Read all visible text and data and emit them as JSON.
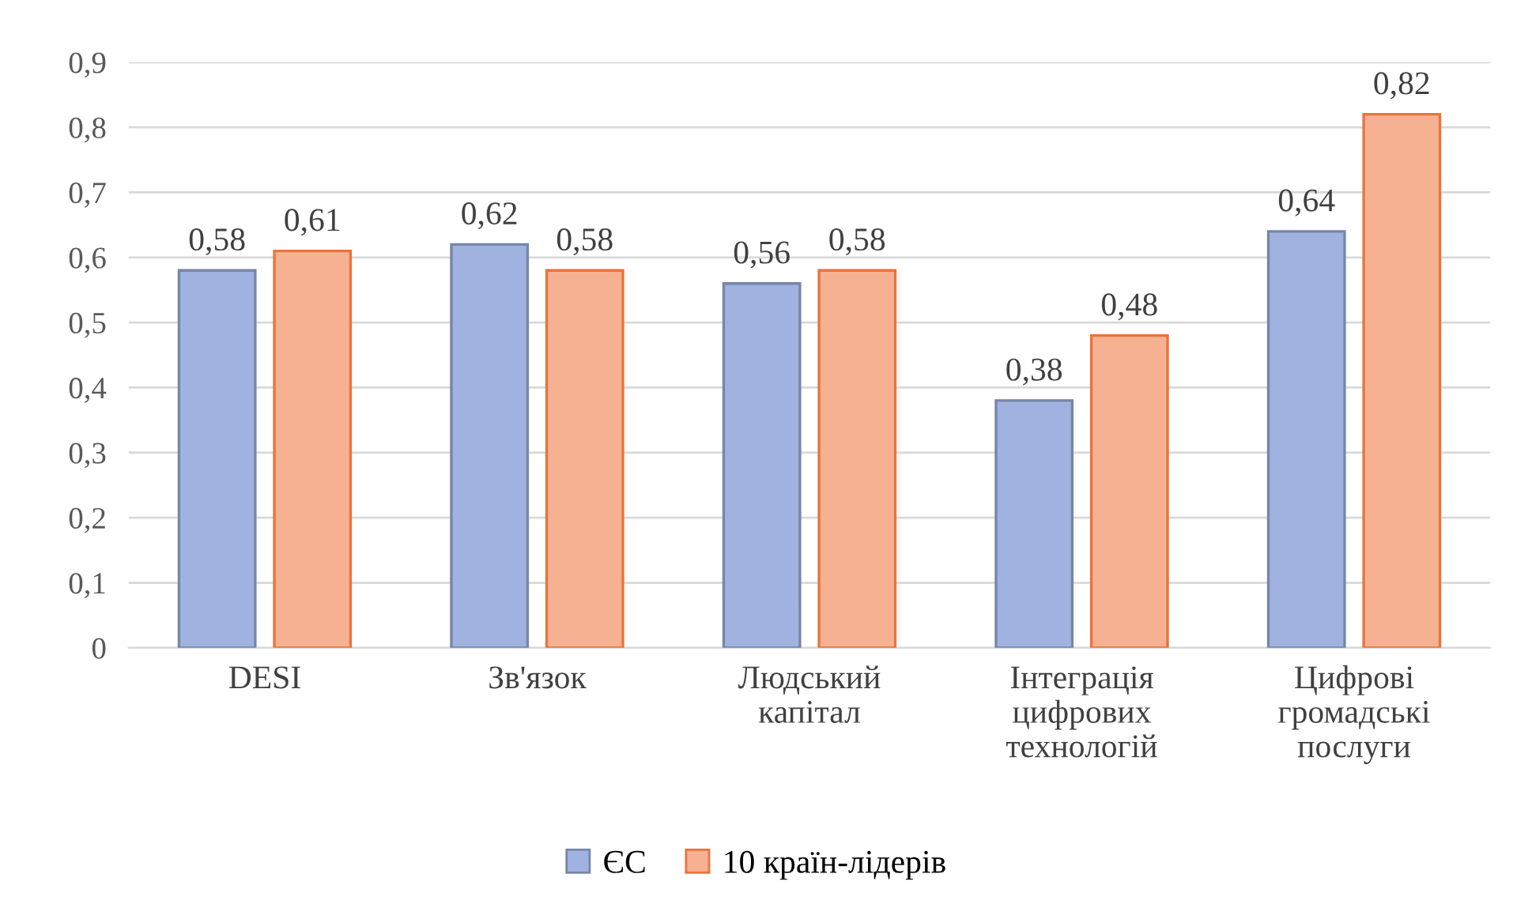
{
  "chart_data": {
    "type": "bar",
    "categories": [
      "DESI",
      "Зв'язок",
      "Людський\nкапітал",
      "Інтеграція\nцифрових\nтехнологій",
      "Цифрові\nгромадські\nпослуги"
    ],
    "series": [
      {
        "name": "ЄС",
        "color": "#9fb2e0",
        "values": [
          0.58,
          0.62,
          0.56,
          0.38,
          0.64
        ],
        "value_labels": [
          "0,58",
          "0,62",
          "0,56",
          "0,38",
          "0,64"
        ]
      },
      {
        "name": "10 країн-лідерів",
        "color": "#f6b193",
        "values": [
          0.61,
          0.58,
          0.58,
          0.48,
          0.82
        ],
        "value_labels": [
          "0,61",
          "0,58",
          "0,58",
          "0,48",
          "0,82"
        ]
      }
    ],
    "ylim": [
      0,
      0.9
    ],
    "yticks": [
      0,
      {
        "value": 0.1,
        "label": "0,1"
      },
      {
        "value": 0.2,
        "label": "0,2"
      },
      {
        "value": 0.3,
        "label": "0,3"
      },
      {
        "value": 0.4,
        "label": "0,4"
      },
      {
        "value": 0.5,
        "label": "0,5"
      },
      {
        "value": 0.6,
        "label": "0,6"
      },
      {
        "value": 0.7,
        "label": "0,7"
      },
      {
        "value": 0.8,
        "label": "0,8"
      },
      {
        "value": 0.9,
        "label": "0,9"
      }
    ],
    "grid": "y",
    "legend": "bottom"
  }
}
